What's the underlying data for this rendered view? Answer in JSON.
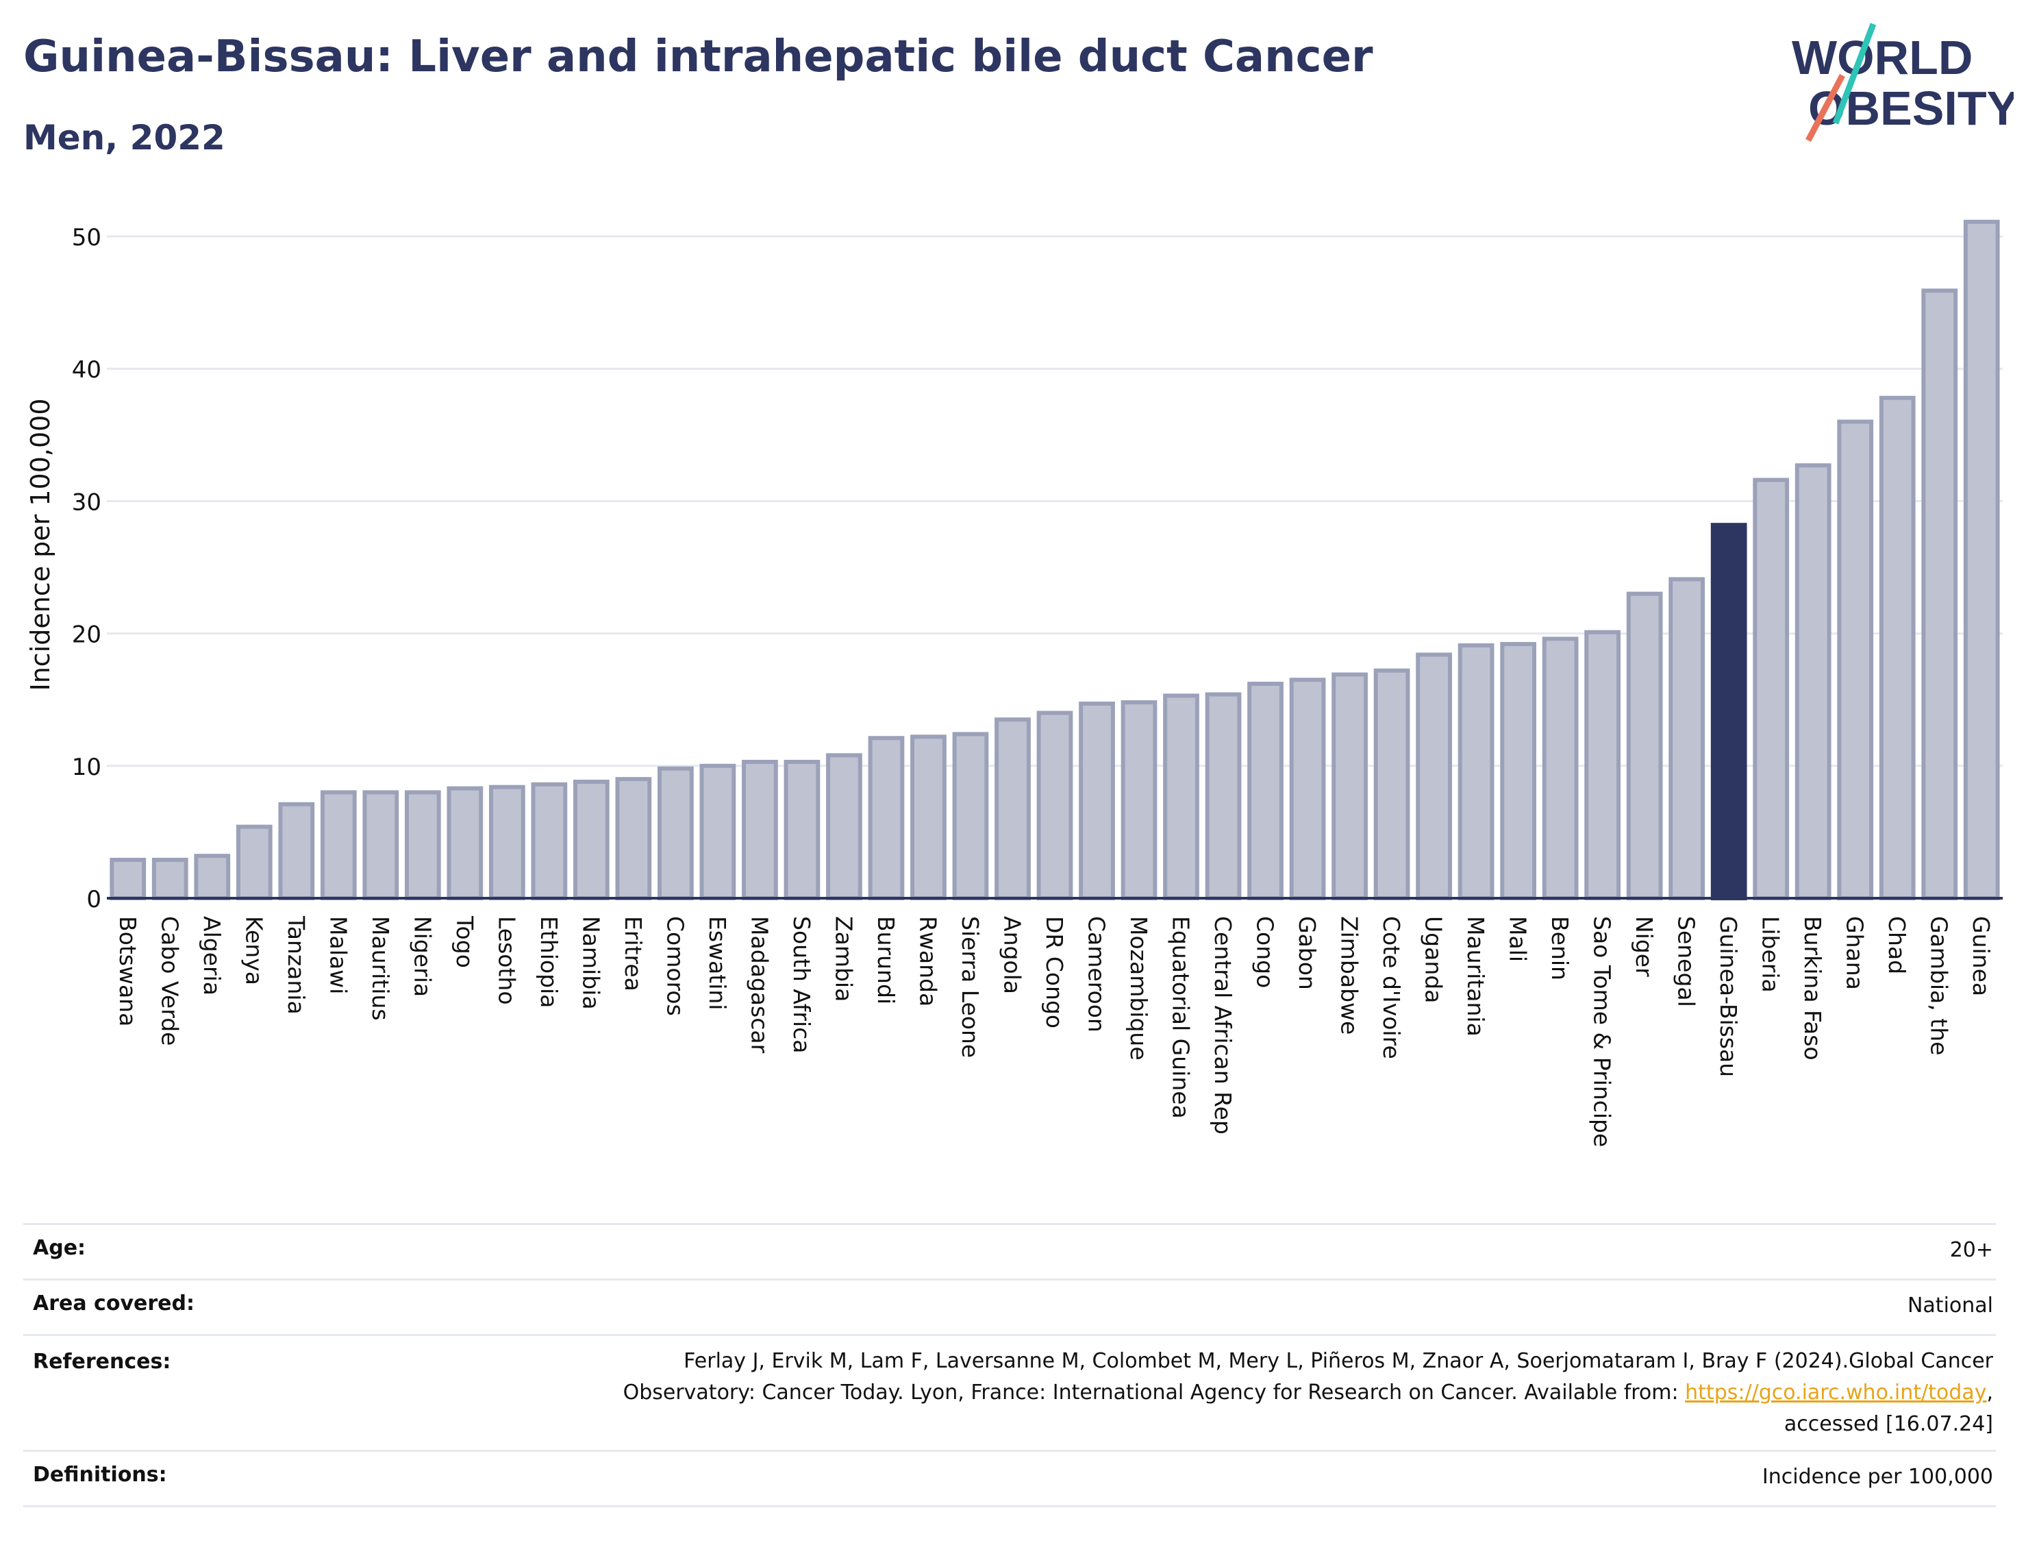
{
  "header": {
    "title": "Guinea-Bissau: Liver and intrahepatic bile duct Cancer",
    "subtitle": "Men, 2022"
  },
  "logo": {
    "line1": "WORLD",
    "line2": "OBESITY",
    "accent_teal": "#2ec4b6",
    "accent_coral": "#e8735a",
    "text_color": "#2d3561"
  },
  "chart_data": {
    "type": "bar",
    "ylabel": "Incidence per 100,000",
    "ylim": [
      0,
      52.5
    ],
    "yticks": [
      0,
      10,
      20,
      30,
      40,
      50
    ],
    "grid": true,
    "highlight": "Guinea-Bissau",
    "colors": {
      "bar": "#bfc3d1",
      "bar_edge": "#9ba1b9",
      "highlight": "#2d3561",
      "grid": "#e6e8f0"
    },
    "categories": [
      "Botswana",
      "Cabo Verde",
      "Algeria",
      "Kenya",
      "Tanzania",
      "Malawi",
      "Mauritius",
      "Nigeria",
      "Togo",
      "Lesotho",
      "Ethiopia",
      "Namibia",
      "Eritrea",
      "Comoros",
      "Eswatini",
      "Madagascar",
      "South Africa",
      "Zambia",
      "Burundi",
      "Rwanda",
      "Sierra Leone",
      "Angola",
      "DR Congo",
      "Cameroon",
      "Mozambique",
      "Equatorial Guinea",
      "Central African Rep",
      "Congo",
      "Gabon",
      "Zimbabwe",
      "Cote d'Ivoire",
      "Uganda",
      "Mauritania",
      "Mali",
      "Benin",
      "Sao Tome & Principe",
      "Niger",
      "Senegal",
      "Guinea-Bissau",
      "Liberia",
      "Burkina Faso",
      "Ghana",
      "Chad",
      "Gambia, the",
      "Guinea"
    ],
    "values": [
      2.9,
      2.9,
      3.2,
      5.4,
      7.1,
      8.0,
      8.0,
      8.0,
      8.3,
      8.4,
      8.6,
      8.8,
      9.0,
      9.8,
      10.0,
      10.3,
      10.3,
      10.8,
      12.1,
      12.2,
      12.4,
      13.5,
      14.0,
      14.7,
      14.8,
      15.3,
      15.4,
      16.2,
      16.5,
      16.9,
      17.2,
      18.4,
      19.1,
      19.2,
      19.6,
      20.1,
      23.0,
      24.1,
      28.2,
      31.6,
      32.7,
      36.0,
      37.8,
      45.9,
      51.1
    ]
  },
  "meta": {
    "age": {
      "label": "Age:",
      "value": "20+"
    },
    "area": {
      "label": "Area covered:",
      "value": "National"
    },
    "references": {
      "label": "References:",
      "line1": "Ferlay J, Ervik M, Lam F, Laversanne M, Colombet M, Mery L, Piñeros M, Znaor A, Soerjomataram I, Bray F (2024).Global Cancer",
      "line2_pre": "Observatory: Cancer Today. Lyon, France: International Agency for Research on Cancer. Available from: ",
      "link": "https://gco.iarc.who.int/today",
      "line2_post": ",",
      "line3": "accessed [16.07.24]"
    },
    "definitions": {
      "label": "Definitions:",
      "value": "Incidence per 100,000"
    }
  }
}
